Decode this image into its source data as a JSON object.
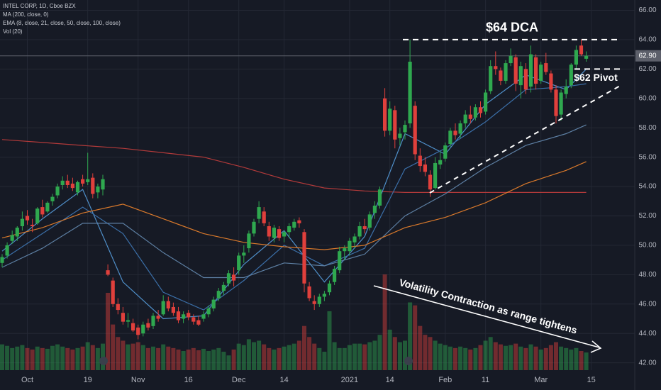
{
  "chart_data": {
    "type": "candlestick",
    "title": "INTEL CORP, 1D, Cboe BZX",
    "categories": [
      null,
      null,
      null,
      null,
      null,
      "Oct",
      null,
      null,
      null,
      null,
      null,
      null,
      null,
      null,
      null,
      null,
      null,
      "19",
      null,
      null,
      null,
      null,
      null,
      null,
      null,
      null,
      null,
      "Nov",
      null,
      null,
      null,
      null,
      null,
      null,
      null,
      null,
      null,
      "16",
      null,
      null,
      null,
      null,
      null,
      null,
      null,
      null,
      null,
      "Dec",
      null,
      null,
      null,
      null,
      null,
      null,
      null,
      null,
      "14",
      null,
      null,
      null,
      null,
      null,
      null,
      null,
      null,
      null,
      null,
      null,
      null,
      "2021",
      null,
      null,
      null,
      null,
      null,
      null,
      null,
      "14",
      null,
      null,
      null,
      null,
      null,
      null,
      null,
      null,
      null,
      null,
      "Feb",
      null,
      null,
      null,
      null,
      null,
      null,
      null,
      "11",
      null,
      null,
      null,
      null,
      null,
      null,
      null,
      null,
      null,
      null,
      "Mar",
      null,
      null,
      null,
      null,
      null,
      null,
      null,
      null,
      null,
      "15"
    ],
    "open": [
      48.8,
      49.3,
      50.3,
      50.6,
      51.3,
      52.0,
      51.4,
      51.5,
      52.6,
      52.3,
      53.0,
      53.4,
      54.1,
      54.4,
      54.2,
      53.6,
      54.5,
      54.3,
      54.6,
      53.6,
      53.8,
      48.3,
      47.6,
      46.0,
      45.4,
      44.8,
      44.7,
      44.4,
      44.0,
      44.7,
      44.5,
      45.2,
      45.3,
      46.2,
      45.8,
      45.5,
      45.0,
      45.4,
      45.1,
      44.9,
      45.0,
      45.3,
      45.7,
      46.4,
      46.9,
      47.4,
      48.0,
      48.3,
      49.3,
      49.8,
      50.8,
      51.8,
      52.3,
      51.3,
      50.5,
      51.1,
      50.6,
      50.9,
      51.2,
      51.7,
      50.9,
      47.2,
      46.2,
      46.0,
      46.5,
      46.8,
      47.5,
      48.3,
      49.6,
      49.6,
      50.2,
      50.6,
      51.3,
      51.2,
      52.2,
      52.7,
      60.0,
      57.8,
      59.2,
      57.3,
      57.7,
      58.3,
      59.5,
      56.1,
      55.5,
      54.8,
      53.9,
      55.5,
      55.9,
      56.9,
      57.8,
      57.6,
      58.3,
      58.9,
      58.7,
      59.4,
      59.1,
      60.5,
      62.2,
      61.9,
      61.2,
      62.4,
      62.8,
      60.9,
      62.0,
      60.8,
      62.8,
      61.2,
      62.4,
      61.7,
      60.6,
      58.9,
      60.3,
      60.9,
      62.3,
      63.6,
      62.7,
      null
    ],
    "high": [
      49.4,
      50.2,
      51.0,
      51.3,
      52.3,
      52.4,
      51.8,
      52.6,
      53.1,
      53.0,
      53.5,
      54.2,
      54.7,
      54.8,
      54.6,
      54.4,
      54.8,
      56.3,
      54.9,
      54.2,
      54.8,
      48.7,
      47.8,
      46.4,
      45.8,
      45.4,
      45.0,
      44.6,
      44.8,
      45.0,
      45.4,
      45.6,
      46.6,
      46.5,
      46.1,
      45.8,
      45.5,
      45.6,
      45.3,
      45.2,
      45.5,
      45.9,
      46.5,
      47.1,
      47.5,
      48.3,
      48.5,
      49.5,
      50.0,
      51.0,
      51.8,
      53.0,
      52.6,
      51.6,
      51.4,
      51.3,
      51.0,
      51.5,
      51.8,
      51.9,
      51.1,
      47.5,
      46.6,
      46.7,
      46.9,
      47.6,
      48.6,
      49.9,
      50.0,
      50.5,
      50.8,
      51.6,
      51.8,
      52.3,
      53.0,
      54.0,
      60.7,
      59.8,
      59.5,
      58.0,
      58.5,
      64.0,
      59.8,
      56.6,
      56.0,
      55.1,
      56.0,
      56.4,
      57.0,
      58.0,
      58.3,
      58.5,
      59.2,
      59.5,
      59.6,
      59.8,
      60.6,
      62.6,
      63.2,
      62.1,
      62.6,
      63.4,
      63.0,
      62.5,
      62.4,
      63.6,
      63.0,
      62.5,
      63.1,
      61.9,
      60.9,
      60.6,
      61.3,
      62.4,
      63.6,
      64.0,
      63.2,
      null
    ],
    "low": [
      48.5,
      49.1,
      50.1,
      50.3,
      51.0,
      51.4,
      50.9,
      51.4,
      51.9,
      52.2,
      52.7,
      53.2,
      53.8,
      53.9,
      53.7,
      53.4,
      54.0,
      54.1,
      53.2,
      53.2,
      53.4,
      47.9,
      45.8,
      45.3,
      44.6,
      44.4,
      44.1,
      43.6,
      43.8,
      44.2,
      44.3,
      44.8,
      45.2,
      45.5,
      45.2,
      44.7,
      44.7,
      44.9,
      44.6,
      44.5,
      44.8,
      45.1,
      45.5,
      46.2,
      46.6,
      47.2,
      47.2,
      48.0,
      48.8,
      49.5,
      50.6,
      51.5,
      51.3,
      50.3,
      50.2,
      50.3,
      50.2,
      50.5,
      51.0,
      51.2,
      46.8,
      46.2,
      45.6,
      45.8,
      46.2,
      46.6,
      47.3,
      48.1,
      49.0,
      49.3,
      49.8,
      50.4,
      50.8,
      51.0,
      51.8,
      52.5,
      57.4,
      57.5,
      56.6,
      56.8,
      57.2,
      58.0,
      55.8,
      55.0,
      54.7,
      53.3,
      53.8,
      55.2,
      55.7,
      56.7,
      57.2,
      57.3,
      58.0,
      58.3,
      58.5,
      58.7,
      58.9,
      60.3,
      61.6,
      60.9,
      61.0,
      62.2,
      60.5,
      60.0,
      60.3,
      60.4,
      60.6,
      61.0,
      61.6,
      60.4,
      58.3,
      58.5,
      60.0,
      60.7,
      62.0,
      62.9,
      62.5,
      null
    ],
    "close": [
      49.2,
      50.0,
      50.7,
      51.2,
      51.8,
      51.7,
      51.3,
      52.5,
      52.1,
      52.9,
      53.3,
      54.0,
      54.4,
      54.1,
      53.9,
      54.3,
      54.2,
      54.5,
      53.5,
      54.0,
      54.5,
      48.0,
      46.0,
      45.6,
      44.8,
      44.9,
      44.2,
      43.9,
      44.6,
      44.4,
      45.2,
      45.0,
      46.2,
      45.7,
      45.4,
      44.9,
      45.3,
      45.1,
      44.8,
      44.6,
      45.3,
      45.7,
      46.3,
      46.9,
      47.3,
      48.1,
      47.6,
      49.3,
      49.5,
      50.8,
      51.6,
      52.6,
      51.5,
      50.6,
      51.2,
      50.5,
      50.9,
      51.3,
      51.6,
      51.5,
      47.4,
      46.4,
      46.0,
      46.5,
      46.7,
      47.4,
      48.4,
      49.6,
      49.8,
      50.3,
      50.6,
      51.3,
      51.1,
      52.1,
      52.7,
      53.8,
      57.8,
      59.3,
      57.2,
      57.6,
      58.2,
      62.5,
      56.2,
      55.4,
      55.0,
      53.8,
      55.6,
      55.8,
      56.8,
      57.8,
      57.5,
      58.3,
      58.9,
      58.6,
      59.4,
      59.0,
      60.4,
      62.2,
      62.0,
      61.2,
      62.4,
      62.9,
      61.0,
      62.2,
      60.6,
      63.0,
      61.0,
      62.3,
      61.8,
      60.6,
      58.8,
      60.4,
      60.8,
      62.3,
      63.3,
      63.0,
      62.9,
      null
    ],
    "volume": [
      35,
      33,
      30,
      32,
      34,
      30,
      28,
      32,
      30,
      29,
      33,
      35,
      32,
      30,
      28,
      30,
      32,
      38,
      34,
      30,
      36,
      105,
      62,
      45,
      40,
      35,
      36,
      38,
      34,
      30,
      32,
      30,
      35,
      32,
      30,
      28,
      26,
      28,
      30,
      27,
      29,
      26,
      28,
      30,
      25,
      20,
      28,
      36,
      34,
      42,
      38,
      40,
      35,
      30,
      28,
      30,
      32,
      34,
      36,
      40,
      60,
      45,
      36,
      30,
      25,
      80,
      38,
      30,
      30,
      34,
      36,
      36,
      35,
      38,
      40,
      48,
      130,
      55,
      45,
      38,
      40,
      92,
      88,
      60,
      48,
      45,
      40,
      36,
      34,
      32,
      30,
      32,
      30,
      28,
      30,
      34,
      40,
      45,
      38,
      35,
      33,
      34,
      36,
      32,
      30,
      35,
      32,
      28,
      30,
      34,
      38,
      32,
      30,
      28,
      30,
      26,
      24,
      null
    ],
    "up_color": "#2fa84f",
    "down_color": "#e0403c",
    "ylim": [
      41.5,
      66.7
    ],
    "yticks": [
      {
        "value": 42,
        "label": "42.00"
      },
      {
        "value": 44,
        "label": "44.00"
      },
      {
        "value": 46,
        "label": "46.00"
      },
      {
        "value": 48,
        "label": "48.00"
      },
      {
        "value": 50,
        "label": "50.00"
      },
      {
        "value": 52,
        "label": "52.00"
      },
      {
        "value": 54,
        "label": "54.00"
      },
      {
        "value": 56,
        "label": "56.00"
      },
      {
        "value": 58,
        "label": "58.00"
      },
      {
        "value": 60,
        "label": "60.00"
      },
      {
        "value": 62,
        "label": "62.00"
      },
      {
        "value": 64,
        "label": "64.00"
      },
      {
        "value": 66,
        "label": "66.00"
      }
    ],
    "grid": true,
    "last_price": {
      "value": 62.9,
      "label": "62.90"
    },
    "ma_series": [
      {
        "name": "MA (200, close, 0)",
        "color": "#b23a3a",
        "x": [
          0,
          8,
          16,
          24,
          32,
          40,
          48,
          56,
          64,
          72,
          80,
          88,
          96,
          104,
          112,
          116
        ],
        "values": [
          57.2,
          57.0,
          56.8,
          56.6,
          56.3,
          56.0,
          55.3,
          54.5,
          53.9,
          53.7,
          53.6,
          53.6,
          53.6,
          53.6,
          53.6,
          53.6
        ]
      }
    ],
    "ema_legend": "EMA (8, close, 21, close, 50, close, 100, close)",
    "ema_series": [
      {
        "color": "#4f8fc9",
        "x": [
          0,
          8,
          16,
          24,
          32,
          40,
          48,
          56,
          64,
          72,
          80,
          88,
          96,
          104,
          112,
          116
        ],
        "values": [
          49.6,
          51.8,
          53.8,
          47.5,
          45.0,
          45.2,
          48.7,
          51.0,
          47.5,
          50.6,
          57.6,
          56.2,
          59.6,
          61.6,
          60.6,
          62.0
        ]
      },
      {
        "color": "#3b6fa8",
        "x": [
          0,
          8,
          16,
          24,
          32,
          40,
          48,
          56,
          64,
          72,
          80,
          88,
          96,
          104,
          112,
          116
        ],
        "values": [
          49.0,
          50.8,
          52.6,
          50.8,
          46.8,
          45.6,
          47.6,
          50.0,
          48.6,
          49.8,
          55.2,
          56.6,
          58.4,
          60.6,
          60.8,
          61.0
        ]
      },
      {
        "color": "#5d7fa3",
        "x": [
          0,
          8,
          16,
          24,
          32,
          40,
          48,
          56,
          64,
          72,
          80,
          88,
          96,
          104,
          112,
          116
        ],
        "values": [
          48.5,
          49.8,
          51.5,
          51.5,
          49.5,
          47.8,
          47.8,
          48.8,
          48.6,
          49.4,
          52.0,
          53.5,
          55.3,
          56.8,
          57.6,
          58.2
        ]
      },
      {
        "color": "#d9792b",
        "x": [
          0,
          8,
          16,
          24,
          32,
          40,
          48,
          56,
          64,
          72,
          80,
          88,
          96,
          104,
          112,
          116
        ],
        "values": [
          50.5,
          51.2,
          52.2,
          52.8,
          51.8,
          50.8,
          50.2,
          49.9,
          49.7,
          50.0,
          51.2,
          51.9,
          52.9,
          54.2,
          55.1,
          55.7
        ]
      }
    ],
    "volume_legend": "Vol (20)",
    "levels": [
      {
        "text": "$64 DCA",
        "value": 64
      },
      {
        "text": "$62 Pivot",
        "value": 62
      }
    ],
    "annotation": "Volatility Contraction as range tightens"
  }
}
